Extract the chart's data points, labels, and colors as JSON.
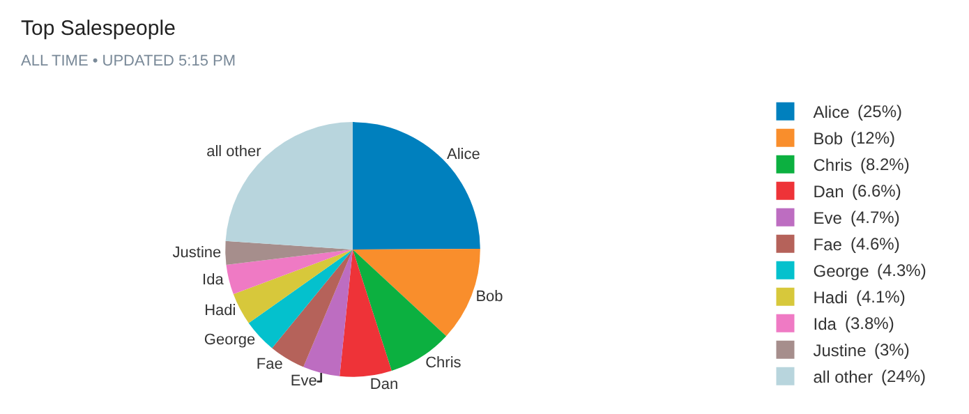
{
  "chart_data": {
    "type": "pie",
    "title": "Top Salespeople",
    "subtitle": "ALL TIME • UPDATED 5:15 PM",
    "categories": [
      "Alice",
      "Bob",
      "Chris",
      "Dan",
      "Eve",
      "Fae",
      "George",
      "Hadi",
      "Ida",
      "Justine",
      "all other"
    ],
    "values": [
      25,
      12,
      8.2,
      6.6,
      4.7,
      4.6,
      4.3,
      4.1,
      3.8,
      3,
      24
    ],
    "value_labels": [
      "(25%)",
      "(12%)",
      "(8.2%)",
      "(6.6%)",
      "(4.7%)",
      "(4.6%)",
      "(4.3%)",
      "(4.1%)",
      "(3.8%)",
      "(3%)",
      "(24%)"
    ],
    "colors": [
      "#0080be",
      "#f98e2c",
      "#0cb040",
      "#ee3338",
      "#bd6dc1",
      "#b5625a",
      "#04c1cd",
      "#d7c83b",
      "#ef7ac4",
      "#a68e8c",
      "#b8d5dd"
    ],
    "legend": "top right"
  }
}
